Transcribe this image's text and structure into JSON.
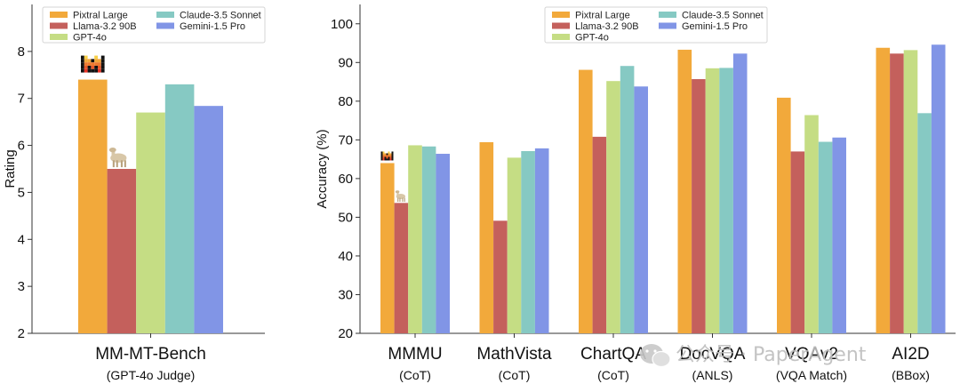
{
  "colors": {
    "Pixtral Large": "#f2a93b",
    "Llama-3.2 90B": "#c4605c",
    "GPT-4o": "#c5dd84",
    "Claude-3.5 Sonnet": "#86c9c3",
    "Gemini-1.5 Pro": "#8195e6"
  },
  "icons": {
    "pixtral": "mistral-logo-icon",
    "llama": "llama-icon"
  },
  "watermark": {
    "icon": "wechat-icon",
    "text": "公众号 · PaperAgent"
  },
  "chart_data": [
    {
      "type": "bar",
      "ylabel": "Rating",
      "ylim": [
        2,
        9
      ],
      "yticks": [
        2,
        3,
        4,
        5,
        6,
        7,
        8
      ],
      "legend_position": "top-left",
      "categories": [
        "MM-MT-Bench"
      ],
      "category_sublabels": [
        "(GPT-4o Judge)"
      ],
      "series": [
        {
          "name": "Pixtral Large",
          "values": [
            7.4
          ]
        },
        {
          "name": "Llama-3.2 90B",
          "values": [
            5.5
          ]
        },
        {
          "name": "GPT-4o",
          "values": [
            6.7
          ]
        },
        {
          "name": "Claude-3.5 Sonnet",
          "values": [
            7.3
          ]
        },
        {
          "name": "Gemini-1.5 Pro",
          "values": [
            6.84
          ]
        }
      ]
    },
    {
      "type": "bar",
      "ylabel": "Accuracy (%)",
      "ylim": [
        20,
        105
      ],
      "yticks": [
        20,
        30,
        40,
        50,
        60,
        70,
        80,
        90,
        100
      ],
      "legend_position": "top-center",
      "categories": [
        "MMMU",
        "MathVista",
        "ChartQA",
        "DocVQA",
        "VQAv2",
        "AI2D"
      ],
      "category_sublabels": [
        "(CoT)",
        "(CoT)",
        "(CoT)",
        "(ANLS)",
        "(VQA Match)",
        "(BBox)"
      ],
      "series": [
        {
          "name": "Pixtral Large",
          "values": [
            64.0,
            69.4,
            88.1,
            93.3,
            80.9,
            93.8
          ]
        },
        {
          "name": "Llama-3.2 90B",
          "values": [
            53.7,
            49.1,
            70.8,
            85.7,
            67.0,
            92.3
          ]
        },
        {
          "name": "GPT-4o",
          "values": [
            68.6,
            65.4,
            85.2,
            88.5,
            76.4,
            93.2
          ]
        },
        {
          "name": "Claude-3.5 Sonnet",
          "values": [
            68.3,
            67.1,
            89.1,
            88.6,
            69.5,
            76.9
          ]
        },
        {
          "name": "Gemini-1.5 Pro",
          "values": [
            66.4,
            67.8,
            83.8,
            92.3,
            70.6,
            94.6
          ]
        }
      ]
    }
  ]
}
